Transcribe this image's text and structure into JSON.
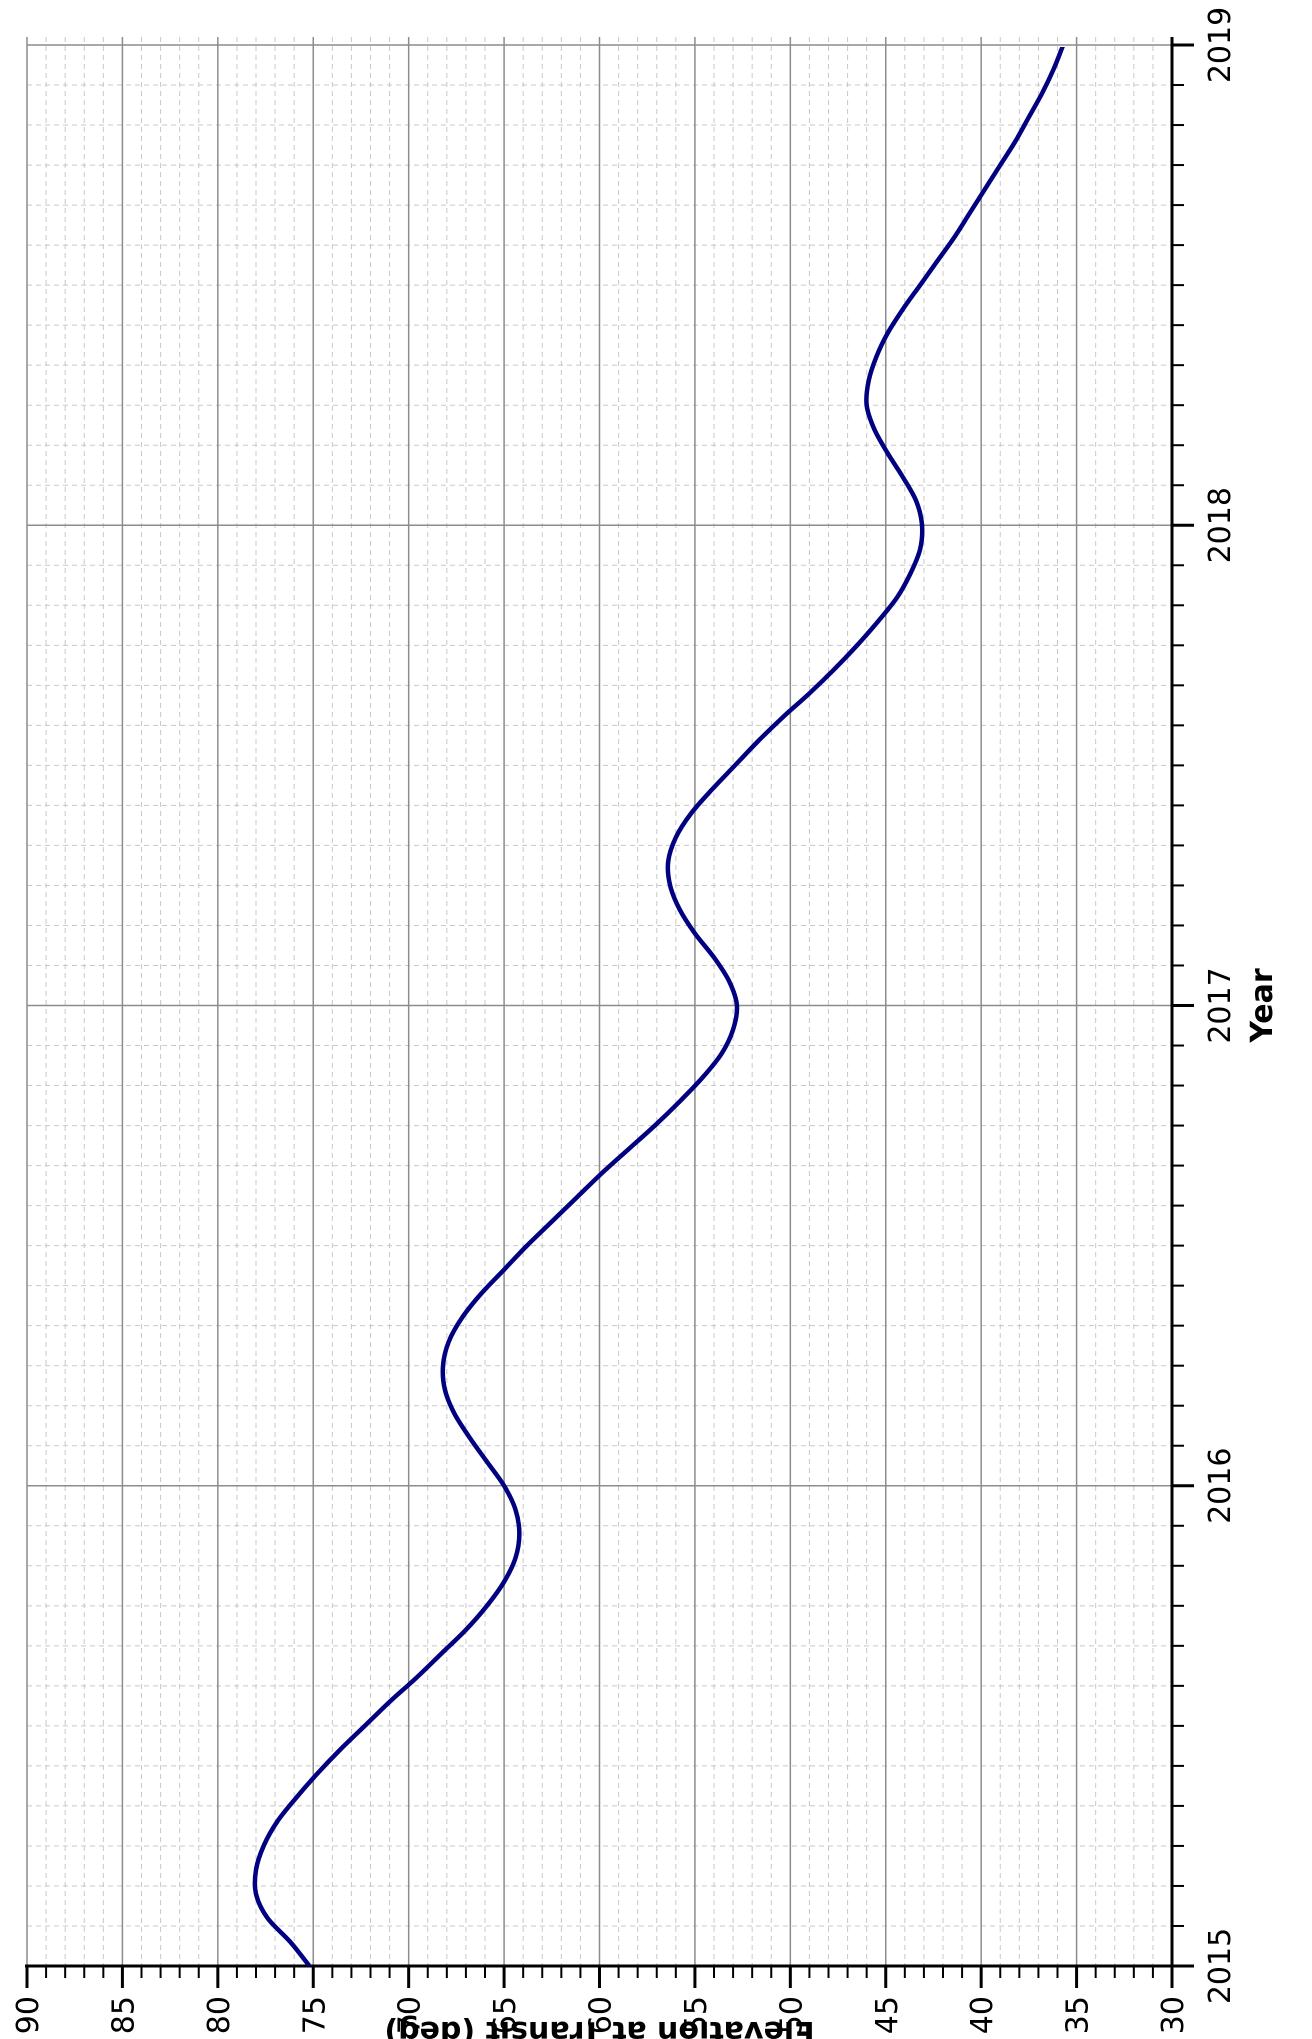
{
  "chart_data": {
    "type": "line",
    "orientation": "rotated-90-ccw",
    "xlabel": "Year",
    "ylabel": "Elevation at Transit (deg)",
    "xlim": [
      2015,
      2019
    ],
    "ylim": [
      30,
      90
    ],
    "x_ticks": [
      "2015",
      "2016",
      "2017",
      "2018",
      "2019"
    ],
    "y_ticks": [
      "30",
      "35",
      "40",
      "45",
      "50",
      "55",
      "60",
      "65",
      "70",
      "75",
      "80",
      "85",
      "90"
    ],
    "grid": true,
    "line_color": "#000080",
    "series": [
      {
        "x": [
          2015.0,
          2015.05,
          2015.1,
          2015.15,
          2015.2,
          2015.25,
          2015.3,
          2015.35,
          2015.4,
          2015.45,
          2015.5,
          2015.55,
          2015.6,
          2015.65,
          2015.7,
          2015.75,
          2015.8,
          2015.85,
          2015.9,
          2015.95,
          2016.0,
          2016.05,
          2016.1,
          2016.15,
          2016.2,
          2016.25,
          2016.3,
          2016.35,
          2016.4,
          2016.45,
          2016.5,
          2016.55,
          2016.6,
          2016.65,
          2016.7,
          2016.75,
          2016.8,
          2016.85,
          2016.9,
          2016.95,
          2017.0,
          2017.05,
          2017.1,
          2017.15,
          2017.2,
          2017.25,
          2017.3,
          2017.35,
          2017.4,
          2017.45,
          2017.5,
          2017.55,
          2017.6,
          2017.65,
          2017.7,
          2017.75,
          2017.8,
          2017.85,
          2017.9,
          2017.95,
          2018.0,
          2018.05,
          2018.1,
          2018.15,
          2018.2,
          2018.25,
          2018.3,
          2018.35,
          2018.4,
          2018.45,
          2018.5,
          2018.55,
          2018.6,
          2018.65,
          2018.7,
          2018.75,
          2018.8,
          2018.85,
          2018.9,
          2018.95,
          2019.0,
          2019.05
        ],
        "y": [
          75.2,
          76.2,
          77.4,
          78.0,
          78.0,
          77.6,
          76.9,
          75.9,
          74.8,
          73.6,
          72.3,
          71.0,
          69.6,
          68.3,
          67.0,
          65.9,
          65.0,
          64.4,
          64.2,
          64.4,
          65.0,
          65.9,
          66.8,
          67.6,
          68.1,
          68.2,
          67.9,
          67.2,
          66.2,
          65.0,
          63.8,
          62.5,
          61.2,
          59.9,
          58.5,
          57.1,
          55.8,
          54.6,
          53.6,
          53.0,
          52.8,
          53.2,
          54.0,
          55.0,
          55.8,
          56.3,
          56.4,
          56.0,
          55.2,
          54.1,
          52.9,
          51.7,
          50.4,
          49.0,
          47.7,
          46.5,
          45.4,
          44.4,
          43.7,
          43.2,
          43.1,
          43.4,
          44.1,
          44.9,
          45.6,
          46.0,
          45.9,
          45.5,
          44.9,
          44.1,
          43.2,
          42.3,
          41.4,
          40.6,
          39.8,
          39.0,
          38.2,
          37.5,
          36.8,
          36.2,
          35.7,
          35.2
        ]
      }
    ]
  }
}
